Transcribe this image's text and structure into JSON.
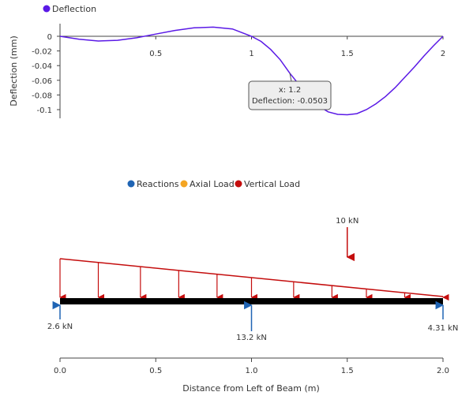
{
  "colors": {
    "deflection": "#5a19e6",
    "reactions": "#1f64b4",
    "axial": "#f4a522",
    "vertical": "#c40d0d",
    "beam": "#000000",
    "axis": "#444444",
    "tooltip_bg": "#eeeeee",
    "tooltip_border": "#555555"
  },
  "chart_data": [
    {
      "type": "line",
      "ylabel": "Deflection (mm)",
      "xlim": [
        0,
        2
      ],
      "ylim": [
        -0.1,
        0
      ],
      "x_ticks": [
        "0.5",
        "1",
        "1.5",
        "2"
      ],
      "y_ticks": [
        "0",
        "-0.02",
        "-0.04",
        "-0.06",
        "-0.08",
        "-0.1"
      ],
      "x_tick_values": [
        0.5,
        1,
        1.5,
        2
      ],
      "y_tick_values": [
        0,
        -0.02,
        -0.04,
        -0.06,
        -0.08,
        -0.1
      ],
      "series": [
        {
          "name": "Deflection",
          "x": [
            0,
            0.1,
            0.2,
            0.3,
            0.4,
            0.5,
            0.6,
            0.7,
            0.8,
            0.9,
            1.0,
            1.05,
            1.1,
            1.15,
            1.2,
            1.25,
            1.3,
            1.35,
            1.4,
            1.45,
            1.5,
            1.55,
            1.6,
            1.65,
            1.7,
            1.75,
            1.8,
            1.85,
            1.9,
            1.95,
            2.0
          ],
          "y": [
            0,
            -0.004,
            -0.0065,
            -0.0055,
            -0.002,
            0.003,
            0.008,
            0.0115,
            0.0125,
            0.01,
            0.0,
            -0.007,
            -0.018,
            -0.032,
            -0.0503,
            -0.0665,
            -0.082,
            -0.095,
            -0.103,
            -0.1065,
            -0.107,
            -0.1055,
            -0.1,
            -0.092,
            -0.082,
            -0.07,
            -0.056,
            -0.042,
            -0.027,
            -0.013,
            0
          ]
        }
      ],
      "legend": {
        "placement": "top-left",
        "items": [
          "Deflection"
        ]
      },
      "tooltip": {
        "x_text": "x: 1.2",
        "y_text": "Deflection: -0.0503",
        "x": 1.2,
        "y": -0.0503
      }
    },
    {
      "type": "diagram",
      "xlabel": "Distance from Left of Beam (m)",
      "xlim": [
        0,
        2
      ],
      "x_ticks": [
        "0.0",
        "0.5",
        "1.0",
        "1.5",
        "2.0"
      ],
      "x_tick_values": [
        0,
        0.5,
        1,
        1.5,
        2
      ],
      "legend": {
        "placement": "top-center",
        "items": [
          "Reactions",
          "Axial Load",
          "Vertical Load"
        ]
      },
      "reactions": [
        {
          "x": 0,
          "label": "2.6 kN",
          "value": 2.6
        },
        {
          "x": 1,
          "label": "13.2 kN",
          "value": 13.2
        },
        {
          "x": 2,
          "label": "4.31 kN",
          "value": 4.31
        }
      ],
      "point_loads": [
        {
          "x": 1.5,
          "label": "10 kN",
          "value": 10
        }
      ],
      "distributed_load": {
        "x_start": 0,
        "x_end": 2,
        "relative_start": 1.0,
        "relative_end": 0.0,
        "arrow_positions": [
          0,
          0.2,
          0.42,
          0.62,
          0.82,
          1.0,
          1.22,
          1.42,
          1.6,
          1.8,
          2.0
        ]
      }
    }
  ]
}
